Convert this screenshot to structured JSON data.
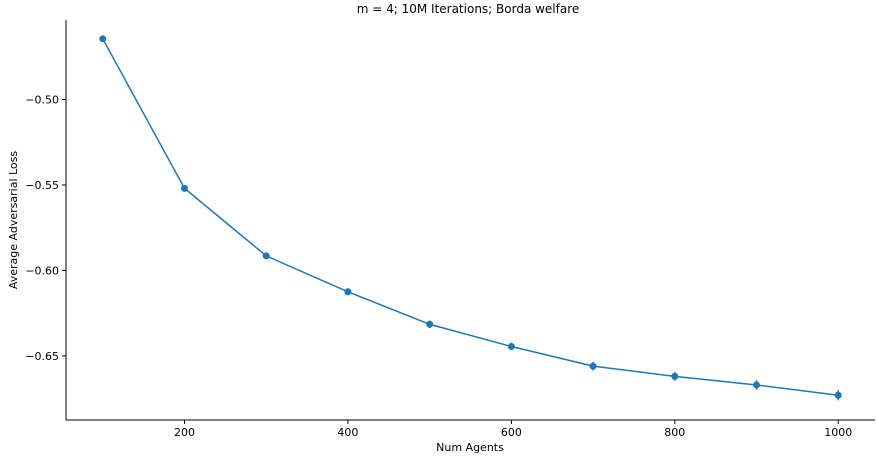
{
  "chart_data": {
    "type": "line",
    "title": "m = 4; 10M Iterations; Borda welfare",
    "xlabel": "Num Agents",
    "ylabel": "Average Adversarial Loss",
    "xlim": [
      55,
      1045
    ],
    "ylim": [
      -0.6875,
      -0.4535
    ],
    "xticks": [
      200,
      400,
      600,
      800,
      1000
    ],
    "xtick_labels": [
      "200",
      "400",
      "600",
      "800",
      "1000"
    ],
    "yticks": [
      -0.5,
      -0.55,
      -0.6,
      -0.65
    ],
    "ytick_labels": [
      "−0.50",
      "−0.55",
      "−0.60",
      "−0.65"
    ],
    "grid": false,
    "color": "#1f77b4",
    "series": [
      {
        "x": [
          100,
          200,
          300,
          400,
          500,
          600,
          700,
          800,
          900,
          1000
        ],
        "y": [
          -0.4645,
          -0.552,
          -0.5915,
          -0.6125,
          -0.6315,
          -0.6445,
          -0.656,
          -0.662,
          -0.667,
          -0.673
        ],
        "yerr": [
          0.001,
          0.0015,
          0.0018,
          0.002,
          0.0022,
          0.0022,
          0.0025,
          0.0025,
          0.0028,
          0.003
        ]
      }
    ]
  }
}
